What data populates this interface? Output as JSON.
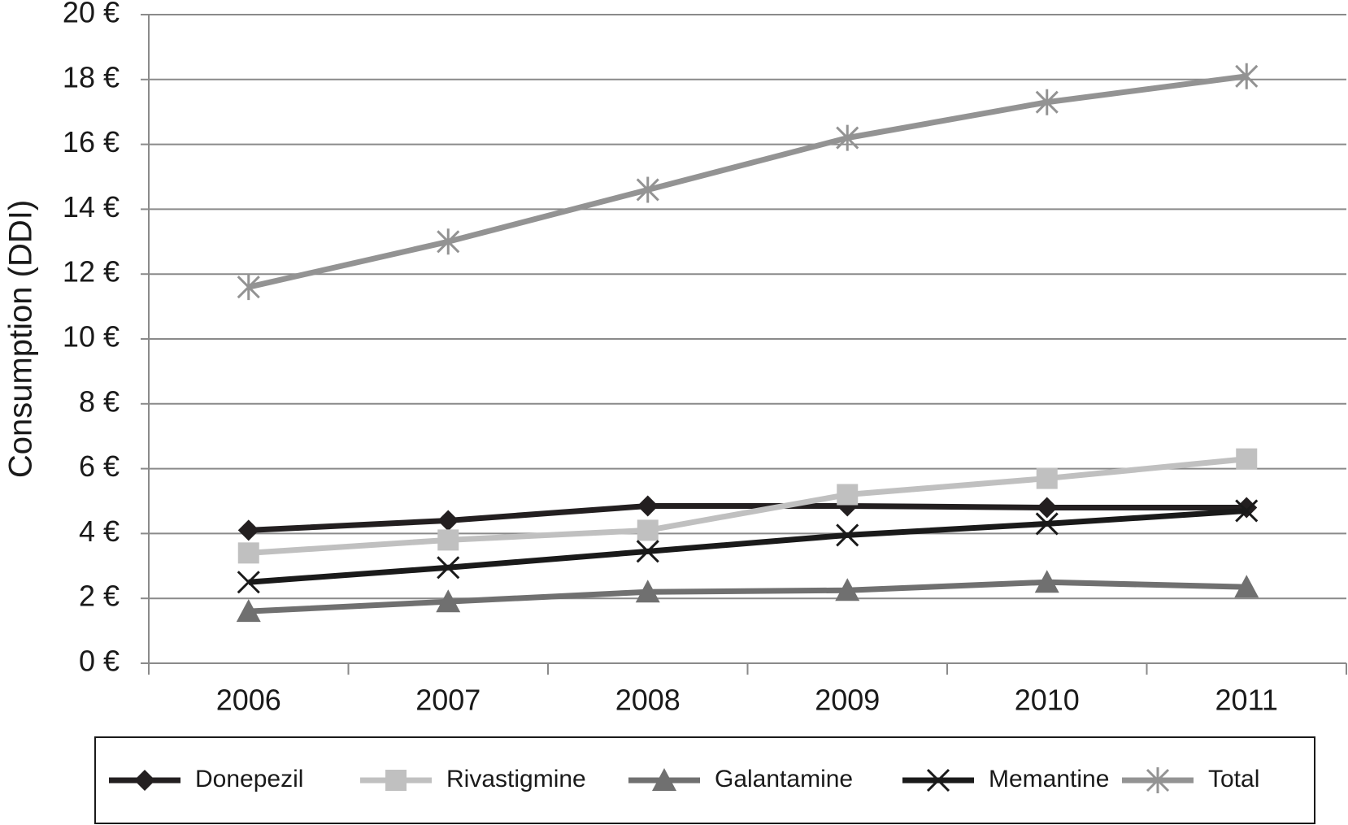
{
  "chart_data": {
    "type": "line",
    "y_label": "Consumption (DDI)",
    "categories": [
      "2006",
      "2007",
      "2008",
      "2009",
      "2010",
      "2011"
    ],
    "series": [
      {
        "name": "Donepezil",
        "color": "#231f20",
        "marker": "diamond",
        "values": [
          4.1,
          4.4,
          4.85,
          4.85,
          4.8,
          4.8
        ]
      },
      {
        "name": "Rivastigmine",
        "color": "#c0c0c0",
        "marker": "square",
        "values": [
          3.4,
          3.8,
          4.1,
          5.2,
          5.7,
          6.3
        ]
      },
      {
        "name": "Galantamine",
        "color": "#707070",
        "marker": "triangle",
        "values": [
          1.6,
          1.9,
          2.2,
          2.25,
          2.5,
          2.35
        ]
      },
      {
        "name": "Memantine",
        "color": "#1a1a1a",
        "marker": "x",
        "values": [
          2.5,
          2.95,
          3.45,
          3.95,
          4.3,
          4.7
        ]
      },
      {
        "name": "Total",
        "color": "#939393",
        "marker": "asterisk",
        "values": [
          11.6,
          13.0,
          14.6,
          16.2,
          17.3,
          18.1
        ]
      }
    ],
    "ylim": [
      0,
      20
    ],
    "yticks": [
      {
        "value": 0,
        "label": "0 €"
      },
      {
        "value": 2,
        "label": "2 €"
      },
      {
        "value": 4,
        "label": "4 €"
      },
      {
        "value": 6,
        "label": "6 €"
      },
      {
        "value": 8,
        "label": "8 €"
      },
      {
        "value": 10,
        "label": "10 €"
      },
      {
        "value": 12,
        "label": "12 €"
      },
      {
        "value": 14,
        "label": "14 €"
      },
      {
        "value": 16,
        "label": "16 €"
      },
      {
        "value": 18,
        "label": "18 €"
      },
      {
        "value": 20,
        "label": "20 €"
      }
    ],
    "grid": true,
    "legend": "bottom"
  }
}
